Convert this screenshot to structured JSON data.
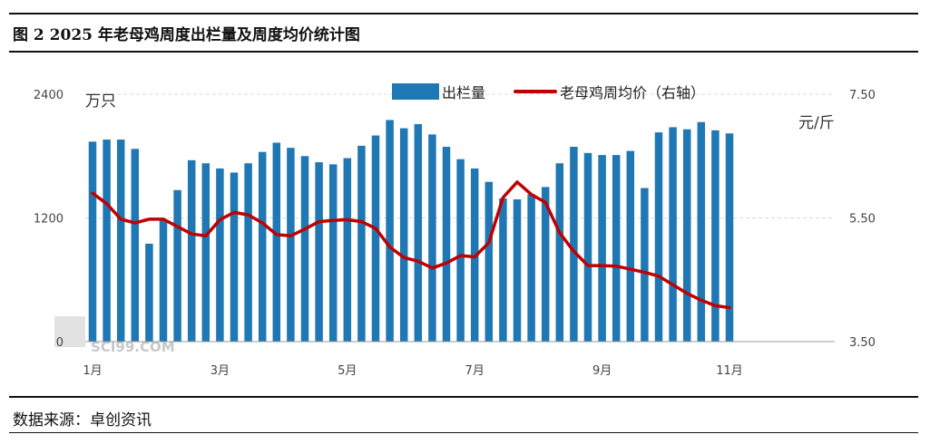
{
  "title": "图 2 2025 年老母鸡周度出栏量及周度均价统计图",
  "source": "数据来源：卓创资讯",
  "chart_data": {
    "type": "bar+line",
    "left_unit": "万只",
    "right_unit": "元/斤",
    "left_axis": {
      "min": 0,
      "max": 2400,
      "ticks": [
        "0",
        "1200",
        "2400"
      ],
      "tick_values": [
        0,
        1200,
        2400
      ]
    },
    "right_axis": {
      "min": 3.5,
      "max": 7.5,
      "ticks": [
        "3.50",
        "5.50",
        "7.50"
      ],
      "tick_values": [
        3.5,
        5.5,
        7.5
      ]
    },
    "x_tick_labels": [
      "1月",
      "3月",
      "5月",
      "7月",
      "9月",
      "11月"
    ],
    "x_tick_weeks": [
      1,
      10,
      19,
      28,
      37,
      46
    ],
    "grid": "horizontal-dashed",
    "legend": {
      "position": "top",
      "bar_label": "出栏量",
      "line_label": "老母鸡周均价（右轴）"
    },
    "colors": {
      "bar": "#1f78b4",
      "line": "#c00000"
    },
    "series": [
      {
        "name": "出栏量",
        "axis": "left",
        "values": [
          1940,
          1960,
          1960,
          1870,
          950,
          1190,
          1470,
          1760,
          1730,
          1680,
          1640,
          1730,
          1840,
          1930,
          1880,
          1800,
          1740,
          1720,
          1780,
          1900,
          2000,
          2150,
          2070,
          2110,
          2010,
          1890,
          1770,
          1680,
          1550,
          1390,
          1380,
          1430,
          1500,
          1730,
          1890,
          1830,
          1810,
          1810,
          1850,
          1490,
          2030,
          2080,
          2060,
          2130,
          2050,
          2020
        ]
      },
      {
        "name": "老母鸡周均价（右轴）",
        "axis": "right",
        "values": [
          5.9,
          5.73,
          5.48,
          5.42,
          5.48,
          5.48,
          5.36,
          5.24,
          5.21,
          5.47,
          5.59,
          5.55,
          5.42,
          5.23,
          5.21,
          5.32,
          5.44,
          5.46,
          5.47,
          5.44,
          5.33,
          5.03,
          4.86,
          4.8,
          4.69,
          4.77,
          4.89,
          4.87,
          5.1,
          5.83,
          6.08,
          5.88,
          5.75,
          5.26,
          4.96,
          4.73,
          4.73,
          4.72,
          4.67,
          4.62,
          4.56,
          4.42,
          4.28,
          4.17,
          4.08,
          4.05
        ]
      }
    ]
  },
  "watermark": "SCI99.COM"
}
